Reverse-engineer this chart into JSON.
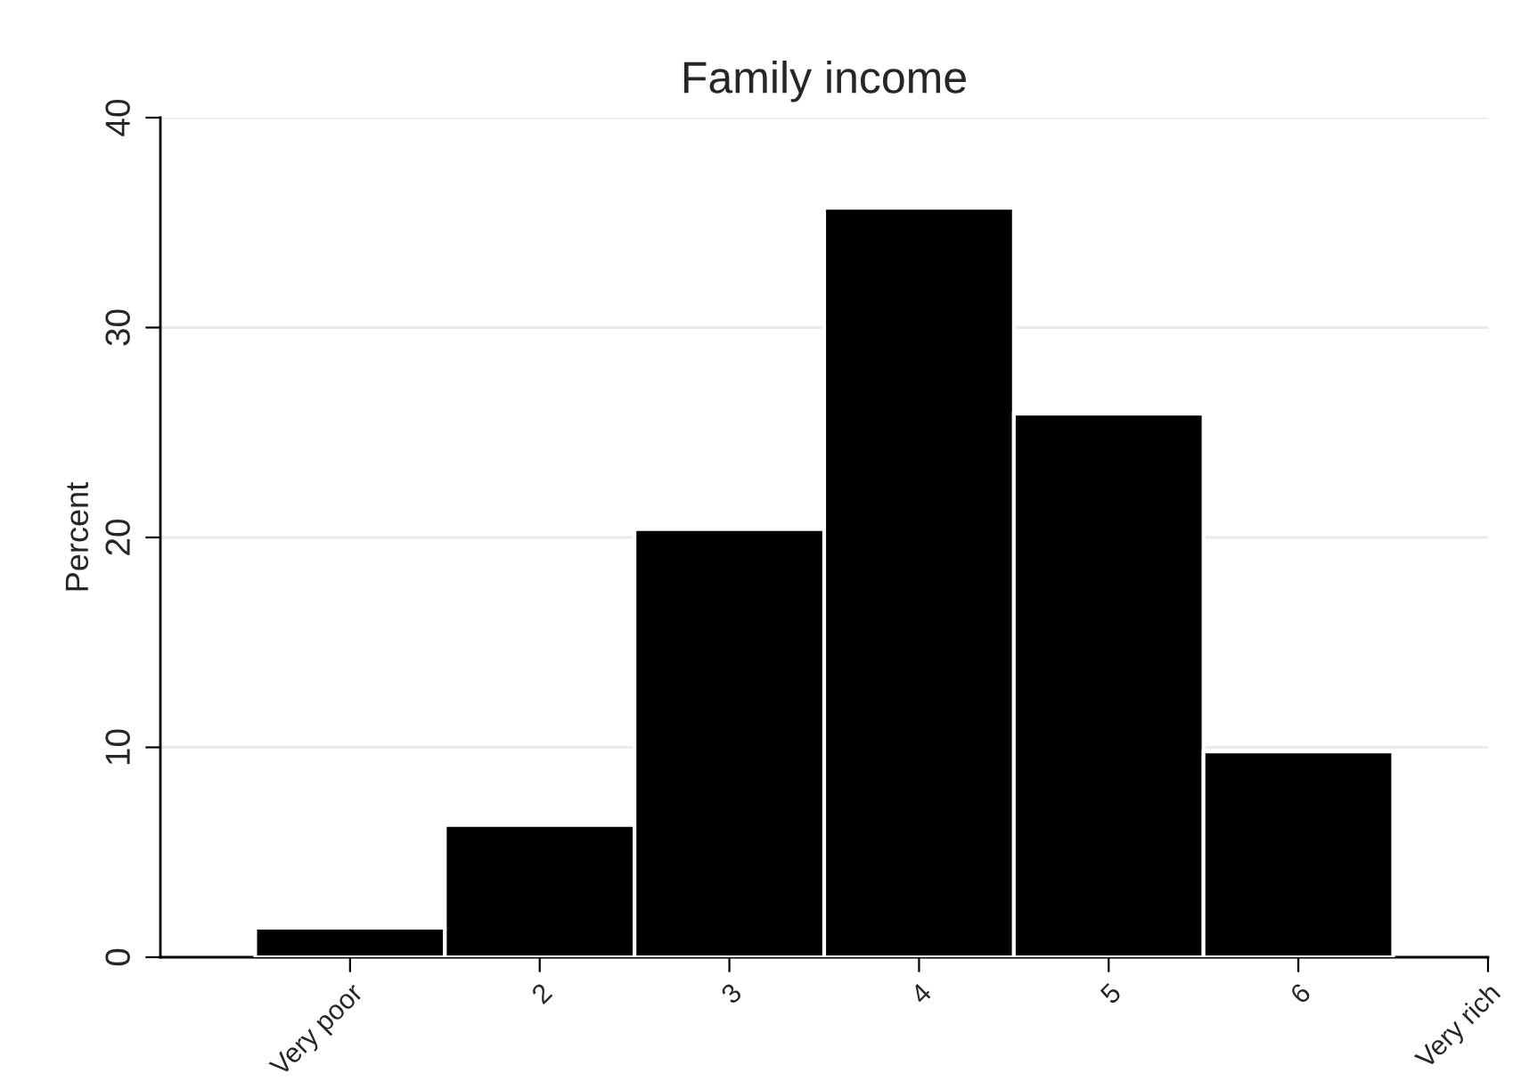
{
  "chart_data": {
    "type": "histogram",
    "title": "Family income",
    "ylabel": "Percent",
    "bins": [
      0.5,
      1.5,
      2.5,
      3.5,
      4.5,
      5.5,
      6.5
    ],
    "values": [
      1.4,
      6.3,
      20.4,
      35.7,
      25.9,
      9.8
    ],
    "color": "#000000",
    "xlim": [
      0,
      7
    ],
    "xticks": [
      {
        "value": 1,
        "label": "Very poor"
      },
      2,
      3,
      4,
      5,
      6,
      {
        "value": 7,
        "label": "Very rich"
      }
    ],
    "ylim": [
      0,
      40
    ],
    "yticks": [
      0,
      10,
      20,
      30,
      40
    ],
    "grid": "y",
    "legend": false
  }
}
